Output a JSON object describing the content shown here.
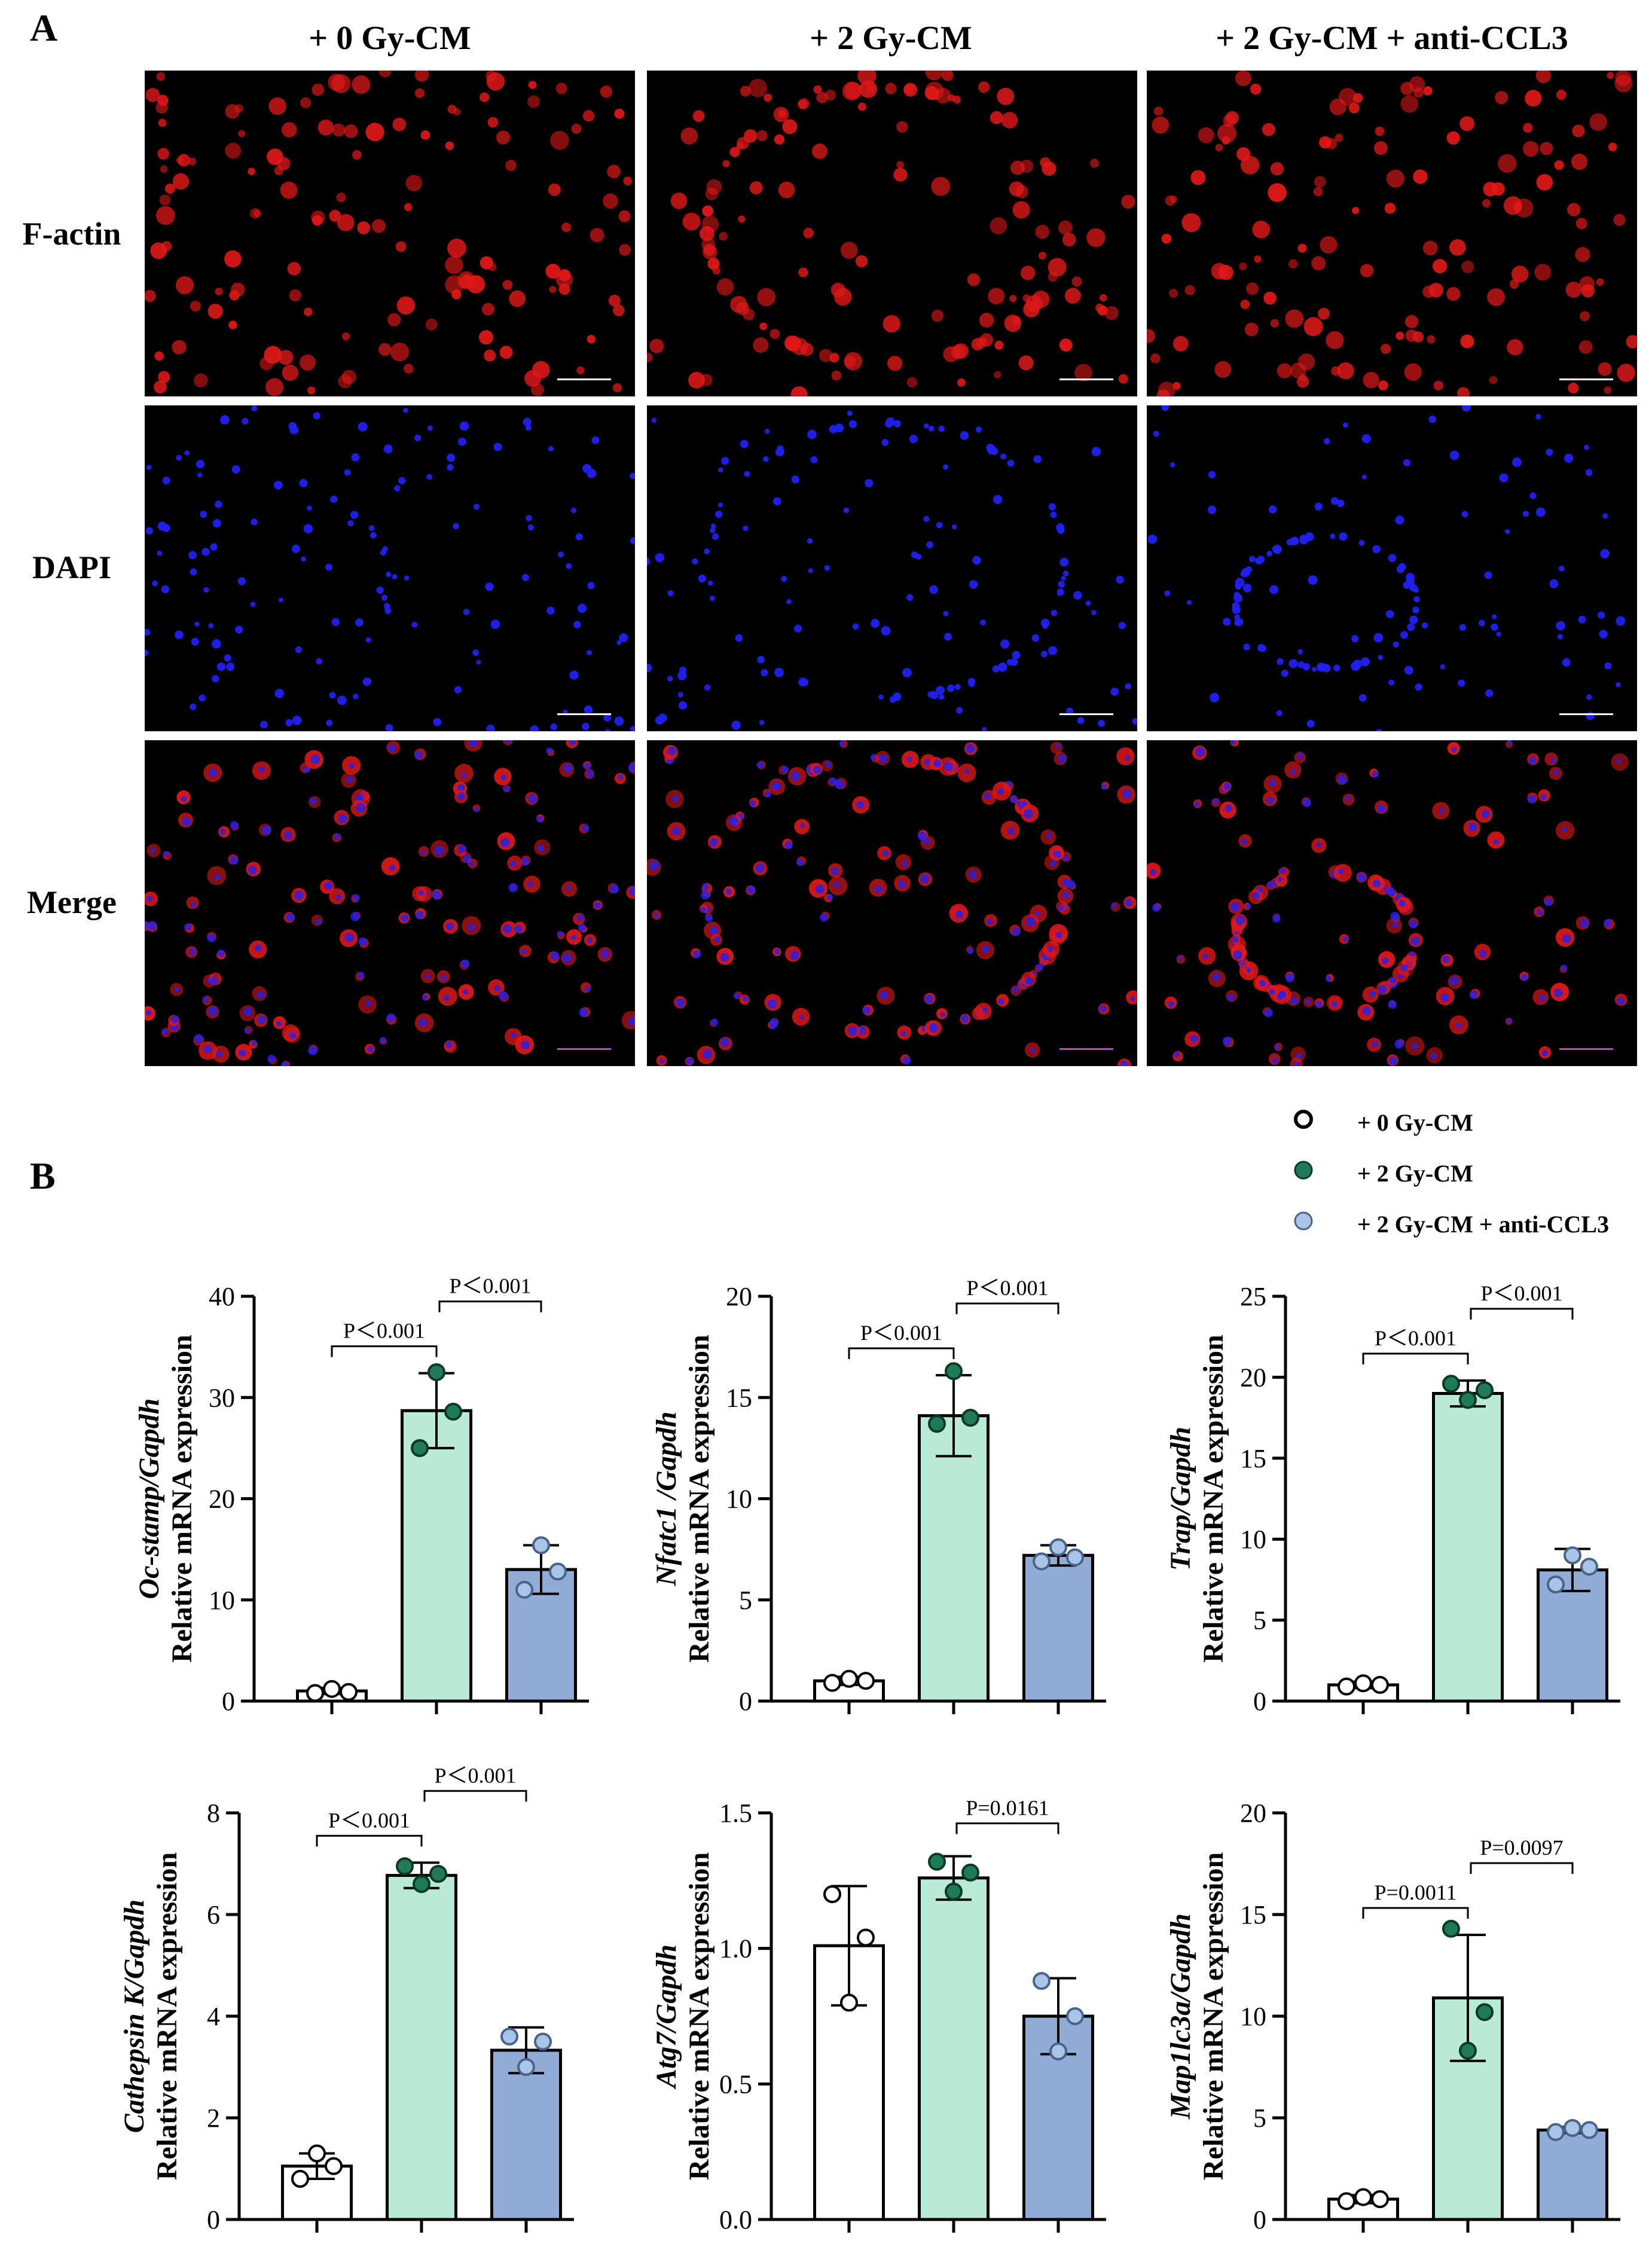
{
  "panel_labels": [
    "A",
    "B"
  ],
  "column_titles": [
    "+ 0 Gy-CM",
    "+ 2 Gy-CM",
    "+ 2 Gy-CM + anti-CCL3"
  ],
  "row_labels": [
    "F-actin",
    "DAPI",
    "Merge"
  ],
  "colors": {
    "group0": "#ffffff",
    "group2": "#b8ead6",
    "group2anti": "#91acd6",
    "dot0": "#ffffff",
    "dot2": "#1f7a58",
    "dot2anti": "#a9c4e6",
    "factin": "#e01818",
    "dapi": "#2020f0"
  },
  "legend": [
    {
      "label": "+ 0 Gy-CM",
      "marker": "open-circle"
    },
    {
      "label": "+ 2 Gy-CM",
      "marker": "green-circle"
    },
    {
      "label": "+ 2 Gy-CM + anti-CCL3",
      "marker": "blue-circle"
    }
  ],
  "chart_data": [
    {
      "type": "bar",
      "gene": "Oc-stamp",
      "gene_italic_suffix": "/Gapdh",
      "ylabel": "Relative mRNA expression",
      "ylim": [
        0,
        40
      ],
      "yticks": [
        "0",
        "10",
        "20",
        "30",
        "40"
      ],
      "categories": [
        "+ 0 Gy-CM",
        "+ 2 Gy-CM",
        "+ 2 Gy-CM + anti-CCL3"
      ],
      "values": [
        1.0,
        28.7,
        13.0
      ],
      "errors": [
        0.3,
        3.7,
        2.4
      ],
      "points": [
        [
          0.8,
          1.2,
          0.9
        ],
        [
          25,
          32.5,
          28.6
        ],
        [
          11,
          15.4,
          12.8
        ]
      ],
      "comparisons": [
        {
          "from": 0,
          "to": 1,
          "label": "P＜0.001"
        },
        {
          "from": 1,
          "to": 2,
          "label": "P＜0.001"
        }
      ]
    },
    {
      "type": "bar",
      "gene": "Nfatc1",
      "gene_italic_suffix": " /Gapdh",
      "ylabel": "Relative mRNA expression",
      "ylim": [
        0,
        20
      ],
      "yticks": [
        "0",
        "5",
        "10",
        "15",
        "20"
      ],
      "categories": [
        "+ 0 Gy-CM",
        "+ 2 Gy-CM",
        "+ 2 Gy-CM + anti-CCL3"
      ],
      "values": [
        1.0,
        14.1,
        7.2
      ],
      "errors": [
        0.2,
        2.0,
        0.5
      ],
      "points": [
        [
          0.9,
          1.1,
          1.0
        ],
        [
          13.7,
          16.3,
          14.0
        ],
        [
          6.9,
          7.6,
          7.1
        ]
      ],
      "comparisons": [
        {
          "from": 0,
          "to": 1,
          "label": "P＜0.001"
        },
        {
          "from": 1,
          "to": 2,
          "label": "P＜0.001"
        }
      ]
    },
    {
      "type": "bar",
      "gene": "Trap",
      "gene_italic_suffix": "/Gapdh",
      "ylabel": "Relative mRNA expression",
      "ylim": [
        0,
        25
      ],
      "yticks": [
        "0",
        "5",
        "10",
        "15",
        "20",
        "25"
      ],
      "categories": [
        "+ 0 Gy-CM",
        "+ 2 Gy-CM",
        "+ 2 Gy-CM + anti-CCL3"
      ],
      "values": [
        1.0,
        19.0,
        8.1
      ],
      "errors": [
        0.2,
        0.8,
        1.3
      ],
      "points": [
        [
          0.9,
          1.1,
          1.0
        ],
        [
          19.6,
          18.6,
          19.2
        ],
        [
          7.2,
          9.0,
          8.3
        ]
      ],
      "comparisons": [
        {
          "from": 0,
          "to": 1,
          "label": "P＜0.001"
        },
        {
          "from": 1,
          "to": 2,
          "label": "P＜0.001"
        }
      ]
    },
    {
      "type": "bar",
      "gene": "Cathepsin K",
      "gene_italic_suffix": "/Gapdh",
      "ylabel": "Relative mRNA expression",
      "ylim": [
        0,
        8
      ],
      "yticks": [
        "0",
        "2",
        "4",
        "6",
        "8"
      ],
      "categories": [
        "+ 0 Gy-CM",
        "+ 2 Gy-CM",
        "+ 2 Gy-CM + anti-CCL3"
      ],
      "values": [
        1.05,
        6.77,
        3.33
      ],
      "errors": [
        0.25,
        0.25,
        0.45
      ],
      "points": [
        [
          0.8,
          1.3,
          1.05
        ],
        [
          6.95,
          6.6,
          6.8
        ],
        [
          3.6,
          3.0,
          3.5
        ]
      ],
      "comparisons": [
        {
          "from": 0,
          "to": 1,
          "label": "P＜0.001"
        },
        {
          "from": 1,
          "to": 2,
          "label": "P＜0.001"
        }
      ]
    },
    {
      "type": "bar",
      "gene": "Atg7",
      "gene_italic_suffix": "/Gapdh",
      "ylabel": "Relative mRNA expression",
      "ylim": [
        0,
        1.5
      ],
      "yticks": [
        "0.0",
        "0.5",
        "1.0",
        "1.5"
      ],
      "categories": [
        "+ 0 Gy-CM",
        "+ 2 Gy-CM",
        "+ 2 Gy-CM + anti-CCL3"
      ],
      "values": [
        1.01,
        1.26,
        0.75
      ],
      "errors": [
        0.22,
        0.08,
        0.14
      ],
      "points": [
        [
          1.2,
          0.8,
          1.04
        ],
        [
          1.32,
          1.21,
          1.28
        ],
        [
          0.88,
          0.62,
          0.75
        ]
      ],
      "comparisons": [
        {
          "from": 1,
          "to": 2,
          "label": "P=0.0161"
        }
      ]
    },
    {
      "type": "bar",
      "gene": "Map1lc3a",
      "gene_italic_suffix": "/Gapdh",
      "ylabel": "Relative mRNA expression",
      "ylim": [
        0,
        20
      ],
      "yticks": [
        "0",
        "5",
        "10",
        "15",
        "20"
      ],
      "categories": [
        "+ 0 Gy-CM",
        "+ 2 Gy-CM",
        "+ 2 Gy-CM + anti-CCL3"
      ],
      "values": [
        1.0,
        10.9,
        4.4
      ],
      "errors": [
        0.2,
        3.1,
        0.15
      ],
      "points": [
        [
          0.9,
          1.1,
          1.0
        ],
        [
          14.3,
          8.3,
          10.2
        ],
        [
          4.3,
          4.5,
          4.4
        ]
      ],
      "comparisons": [
        {
          "from": 0,
          "to": 1,
          "label": "P=0.0011"
        },
        {
          "from": 1,
          "to": 2,
          "label": "P=0.0097"
        }
      ]
    }
  ]
}
